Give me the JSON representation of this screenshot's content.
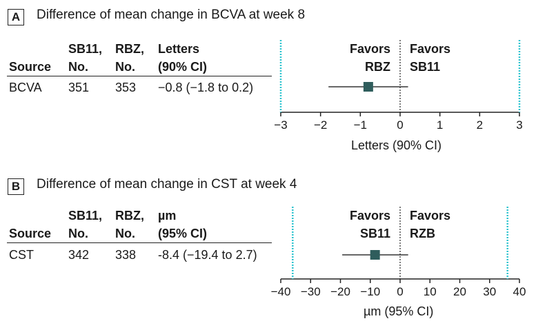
{
  "chart_data": [
    {
      "type": "forest",
      "panel_label": "A",
      "title": "Difference of mean change in BCVA at week 8",
      "columns": {
        "source": "Source",
        "sb11": [
          "SB11,",
          "No."
        ],
        "rbz": [
          "RBZ,",
          "No."
        ],
        "estimate": [
          "Letters",
          "(90% CI)"
        ]
      },
      "rows": [
        {
          "source": "BCVA",
          "sb11_n": "351",
          "rbz_n": "353",
          "estimate_text": "−0.8 (−1.8 to 0.2)",
          "estimate": -0.8,
          "ci_low": -1.8,
          "ci_high": 0.2
        }
      ],
      "favors_left": [
        "Favors",
        "RBZ"
      ],
      "favors_right": [
        "Favors",
        "SB11"
      ],
      "xlabel": "Letters (90% CI)",
      "xlim": [
        -3,
        3
      ],
      "xticks": [
        -3,
        -2,
        -1,
        0,
        1,
        2,
        3
      ],
      "xtick_labels": [
        "−3",
        "−2",
        "−1",
        "0",
        "1",
        "2",
        "3"
      ],
      "margin_lines": [
        -3,
        3
      ],
      "reference_line": 0
    },
    {
      "type": "forest",
      "panel_label": "B",
      "title": "Difference of mean change in CST at week 4",
      "columns": {
        "source": "Source",
        "sb11": [
          "SB11,",
          "No."
        ],
        "rbz": [
          "RBZ,",
          "No."
        ],
        "estimate": [
          "µm",
          "(95% CI)"
        ]
      },
      "rows": [
        {
          "source": "CST",
          "sb11_n": "342",
          "rbz_n": "338",
          "estimate_text": "-8.4 (−19.4 to 2.7)",
          "estimate": -8.4,
          "ci_low": -19.4,
          "ci_high": 2.7
        }
      ],
      "favors_left": [
        "Favors",
        "SB11"
      ],
      "favors_right": [
        "Favors",
        "RZB"
      ],
      "xlabel": "µm (95% CI)",
      "xlim": [
        -40,
        40
      ],
      "xticks": [
        -40,
        -30,
        -20,
        -10,
        0,
        10,
        20,
        30,
        40
      ],
      "xtick_labels": [
        "−40",
        "−30",
        "−20",
        "−10",
        "0",
        "10",
        "20",
        "30",
        "40"
      ],
      "margin_lines": [
        -36,
        36
      ],
      "reference_line": 0
    }
  ],
  "colors": {
    "marker": "#2f5d5c",
    "margin_line": "#2ec4cf",
    "text": "#1a1a1a"
  }
}
